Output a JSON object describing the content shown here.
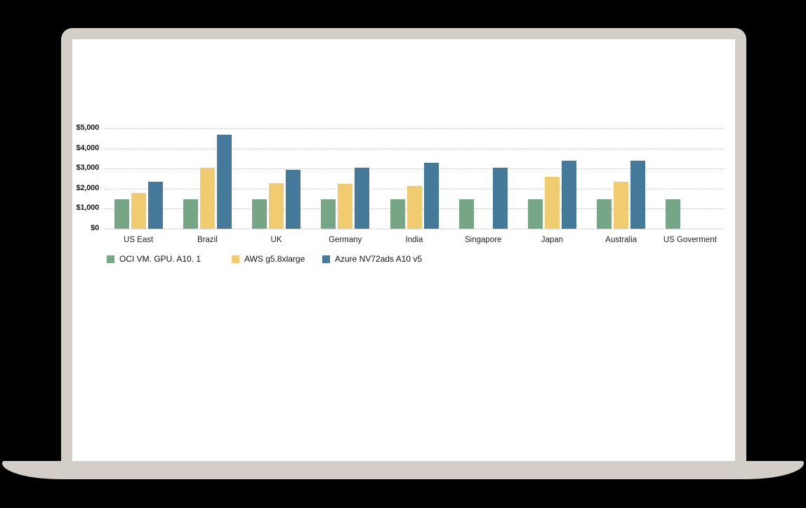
{
  "scene": {
    "background_color": "#000000",
    "laptop": {
      "body_color": "#d3cfc8",
      "screen_color": "#ffffff"
    }
  },
  "chart_data": {
    "type": "bar",
    "title": "",
    "xlabel": "",
    "ylabel": "",
    "ylim": [
      0,
      5000
    ],
    "grid": "dotted-horizontal",
    "legend_position": "bottom-left",
    "y_ticks": [
      {
        "value": 0,
        "label": "$0"
      },
      {
        "value": 1000,
        "label": "$1,000"
      },
      {
        "value": 2000,
        "label": "$2,000"
      },
      {
        "value": 3000,
        "label": "$3,000"
      },
      {
        "value": 4000,
        "label": "$4,000"
      },
      {
        "value": 5000,
        "label": "$5,000"
      }
    ],
    "categories": [
      "US East",
      "Brazil",
      "UK",
      "Germany",
      "India",
      "Singapore",
      "Japan",
      "Australia",
      "US Goverment"
    ],
    "series": [
      {
        "name": "OCI VM. GPU. A10. 1",
        "color": "#76a685",
        "values": [
          1460,
          1460,
          1460,
          1460,
          1460,
          1460,
          1460,
          1460,
          1460
        ]
      },
      {
        "name": "AWS g5.8xlarge",
        "color": "#f0cb70",
        "values": [
          1800,
          3050,
          2280,
          2250,
          2150,
          null,
          2600,
          2350,
          null
        ]
      },
      {
        "name": "Azure NV72ads A10 v5",
        "color": "#45799a",
        "values": [
          2350,
          4700,
          2950,
          3050,
          3300,
          3050,
          3400,
          3400,
          null
        ]
      }
    ]
  }
}
